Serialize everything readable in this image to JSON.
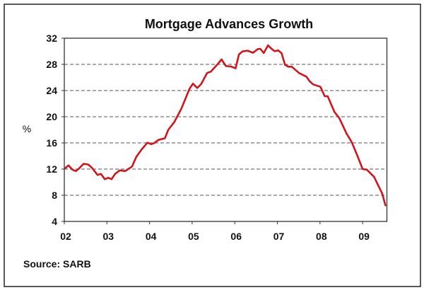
{
  "chart_data": {
    "type": "line",
    "title": "Mortgage Advances Growth",
    "xlabel": "",
    "ylabel": "%",
    "source": "Source: SARB",
    "xlim": [
      2002,
      2009.57
    ],
    "ylim": [
      4,
      32
    ],
    "yticks": [
      4,
      8,
      12,
      16,
      20,
      24,
      28,
      32
    ],
    "ytick_labels": [
      "4",
      "8",
      "12",
      "16",
      "20",
      "24",
      "28",
      "32"
    ],
    "xticks": [
      2002,
      2003,
      2004,
      2005,
      2006,
      2007,
      2008,
      2009
    ],
    "xtick_labels": [
      "02",
      "03",
      "04",
      "05",
      "06",
      "07",
      "08",
      "09"
    ],
    "grid": "horizontal dashed",
    "line_color": "#d0161c",
    "series": [
      {
        "name": "Mortgage Advances Growth",
        "x": [
          2002.01,
          2002.1,
          2002.19,
          2002.27,
          2002.34,
          2002.45,
          2002.56,
          2002.65,
          2002.78,
          2002.86,
          2002.95,
          2003.03,
          2003.11,
          2003.19,
          2003.3,
          2003.43,
          2003.59,
          2003.69,
          2003.81,
          2003.95,
          2004.04,
          2004.11,
          2004.21,
          2004.36,
          2004.44,
          2004.58,
          2004.75,
          2004.94,
          2005.02,
          2005.12,
          2005.21,
          2005.35,
          2005.44,
          2005.62,
          2005.69,
          2005.79,
          2005.91,
          2006.02,
          2006.1,
          2006.18,
          2006.3,
          2006.43,
          2006.54,
          2006.6,
          2006.68,
          2006.78,
          2006.85,
          2006.93,
          2007.02,
          2007.1,
          2007.18,
          2007.26,
          2007.34,
          2007.51,
          2007.68,
          2007.76,
          2007.84,
          2008.01,
          2008.11,
          2008.18,
          2008.34,
          2008.45,
          2008.62,
          2008.75,
          2008.88,
          2009.0,
          2009.1,
          2009.27,
          2009.46,
          2009.54
        ],
        "y": [
          12.07,
          12.57,
          11.9,
          11.7,
          12.05,
          12.8,
          12.7,
          12.2,
          11.1,
          11.25,
          10.45,
          10.67,
          10.45,
          11.25,
          11.8,
          11.7,
          12.4,
          13.87,
          14.95,
          16.03,
          15.8,
          15.97,
          16.47,
          16.7,
          18.0,
          19.17,
          21.26,
          24.3,
          25.05,
          24.4,
          24.97,
          26.67,
          26.9,
          28.2,
          28.76,
          27.75,
          27.68,
          27.4,
          29.55,
          29.98,
          30.1,
          29.77,
          30.34,
          30.38,
          29.73,
          30.92,
          30.45,
          30.02,
          30.13,
          29.7,
          27.92,
          27.64,
          27.64,
          26.67,
          26.13,
          25.4,
          24.94,
          24.57,
          23.13,
          23.13,
          20.72,
          19.82,
          17.48,
          16.03,
          14.0,
          12.0,
          11.9,
          10.8,
          8.26,
          6.35
        ]
      }
    ]
  }
}
